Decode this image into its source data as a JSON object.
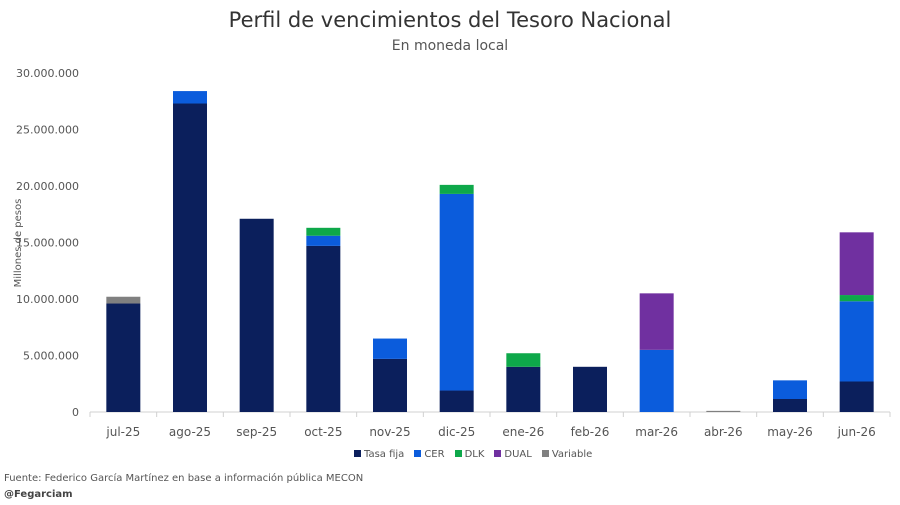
{
  "chart_data": {
    "type": "bar",
    "stacked": true,
    "title": "Perfil de vencimientos del Tesoro Nacional",
    "subtitle": "En moneda local",
    "ylabel": "Millones de pesos",
    "xlabel": "",
    "ylim": [
      0,
      30000000
    ],
    "yticks": [
      0,
      5000000,
      10000000,
      15000000,
      20000000,
      25000000,
      30000000
    ],
    "ytick_labels": [
      "0",
      "5.000.000",
      "10.000.000",
      "15.000.000",
      "20.000.000",
      "25.000.000",
      "30.000.000"
    ],
    "grid": false,
    "legend_position": "bottom",
    "categories": [
      "jul-25",
      "ago-25",
      "sep-25",
      "oct-25",
      "nov-25",
      "dic-25",
      "ene-26",
      "feb-26",
      "mar-26",
      "abr-26",
      "may-26",
      "jun-26"
    ],
    "series": [
      {
        "name": "Tasa fija",
        "color": "#0b1f5c",
        "values": [
          9600000,
          27300000,
          17100000,
          14700000,
          4700000,
          1900000,
          4000000,
          4000000,
          0,
          0,
          1150000,
          2700000
        ]
      },
      {
        "name": "CER",
        "color": "#0b5cdc",
        "values": [
          0,
          1100000,
          0,
          900000,
          1800000,
          17400000,
          0,
          0,
          5500000,
          0,
          1650000,
          7100000
        ]
      },
      {
        "name": "DLK",
        "color": "#0ea84a",
        "values": [
          0,
          0,
          0,
          700000,
          0,
          800000,
          1200000,
          0,
          0,
          0,
          0,
          550000
        ]
      },
      {
        "name": "DUAL",
        "color": "#7030a0",
        "values": [
          0,
          0,
          0,
          0,
          0,
          0,
          0,
          0,
          5000000,
          0,
          0,
          5550000
        ]
      },
      {
        "name": "Variable",
        "color": "#808080",
        "values": [
          600000,
          0,
          0,
          0,
          0,
          0,
          0,
          0,
          0,
          100000,
          0,
          0
        ]
      }
    ]
  },
  "footer": {
    "source": "Fuente: Federico García Martínez en base a información pública MECON",
    "handle": "@Fegarciam"
  }
}
